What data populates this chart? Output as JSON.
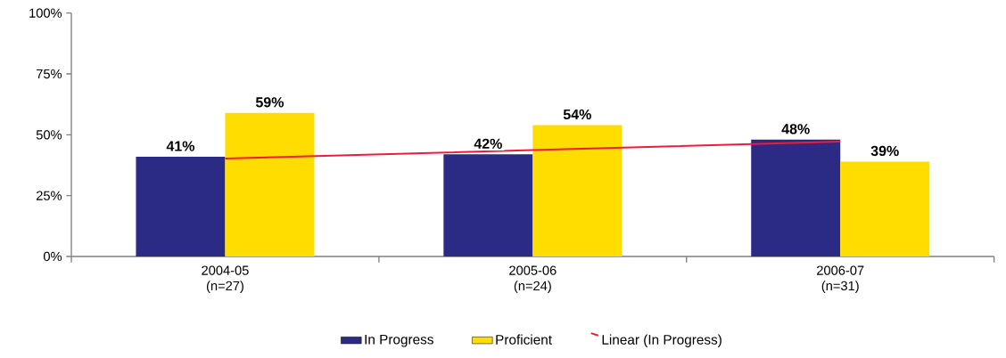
{
  "chart_data": {
    "type": "bar",
    "categories": [
      "2004-05 (n=27)",
      "2005-06 (n=24)",
      "2006-07 (n=31)"
    ],
    "series": [
      {
        "name": "In Progress",
        "color": "#2b2a85",
        "values": [
          41,
          42,
          48
        ],
        "value_labels": [
          "41%",
          "42%",
          "48%"
        ]
      },
      {
        "name": "Proficient",
        "color": "#ffdd00",
        "values": [
          59,
          54,
          39
        ],
        "value_labels": [
          "59%",
          "54%",
          "39%"
        ]
      },
      {
        "name": "Linear (In Progress)",
        "type": "line",
        "color": "#ee1c3a",
        "values": [
          40.2,
          43.7,
          47.2
        ]
      }
    ],
    "ylim": [
      0,
      100
    ],
    "yticks": [
      {
        "value": 0,
        "label": "0%"
      },
      {
        "value": 25,
        "label": "25%"
      },
      {
        "value": 50,
        "label": "50%"
      },
      {
        "value": 75,
        "label": "75%"
      },
      {
        "value": 100,
        "label": "100%"
      }
    ],
    "legend": "bottom"
  }
}
